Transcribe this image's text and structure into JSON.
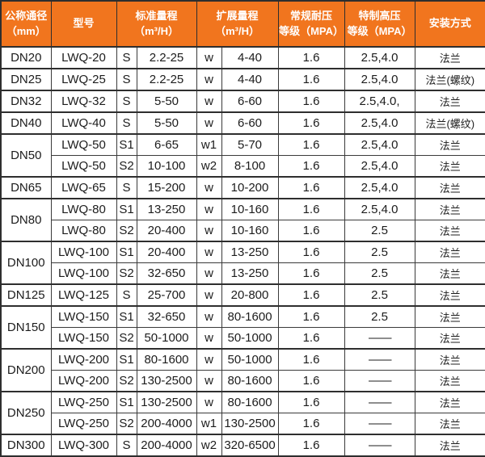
{
  "colors": {
    "header_bg": "#f1751e",
    "header_text": "#ffffff",
    "border_dark": "#2e2e2e",
    "grid": "#3a3a3a",
    "body_text": "#1c1c1c",
    "body_bg": "#ffffff"
  },
  "chart_data": {
    "type": "table",
    "headers": {
      "dn": "公称通径\n（mm）",
      "model": "型号",
      "std": "标准量程\n（m³/H）",
      "ext": "扩展量程\n（m³/H）",
      "pressure": "常规耐压\n等级（MPA）",
      "high": "特制高压\n等级（MPA）",
      "install": "安装方式"
    },
    "rows": [
      {
        "dn": "DN20",
        "dn_rowspan": 1,
        "model": "LWQ-20",
        "s": "S",
        "std": "2.2-25",
        "w": "w",
        "ext": "4-40",
        "pressure": "1.6",
        "high": "2.5,4.0",
        "install": "法兰"
      },
      {
        "dn": "DN25",
        "dn_rowspan": 1,
        "model": "LWQ-25",
        "s": "S",
        "std": "2.2-25",
        "w": "w",
        "ext": "4-40",
        "pressure": "1.6",
        "high": "2.5,4.0",
        "install": "法兰(螺纹)"
      },
      {
        "dn": "DN32",
        "dn_rowspan": 1,
        "model": "LWQ-32",
        "s": "S",
        "std": "5-50",
        "w": "w",
        "ext": "6-60",
        "pressure": "1.6",
        "high": "2.5,4.0,",
        "install": "法兰"
      },
      {
        "dn": "DN40",
        "dn_rowspan": 1,
        "model": "LWQ-40",
        "s": "S",
        "std": "5-50",
        "w": "w",
        "ext": "6-60",
        "pressure": "1.6",
        "high": "2.5,4.0",
        "install": "法兰(螺纹)"
      },
      {
        "dn": "DN50",
        "dn_rowspan": 2,
        "model": "LWQ-50",
        "s": "S1",
        "std": "6-65",
        "w": "w1",
        "ext": "5-70",
        "pressure": "1.6",
        "high": "2.5,4.0",
        "install": "法兰"
      },
      {
        "dn": null,
        "model": "LWQ-50",
        "s": "S2",
        "std": "10-100",
        "w": "w2",
        "ext": "8-100",
        "pressure": "1.6",
        "high": "2.5,4.0",
        "install": "法兰"
      },
      {
        "dn": "DN65",
        "dn_rowspan": 1,
        "model": "LWQ-65",
        "s": "S",
        "std": "15-200",
        "w": "w",
        "ext": "10-200",
        "pressure": "1.6",
        "high": "2.5,4.0",
        "install": "法兰"
      },
      {
        "dn": "DN80",
        "dn_rowspan": 2,
        "model": "LWQ-80",
        "s": "S1",
        "std": "13-250",
        "w": "w",
        "ext": "10-160",
        "pressure": "1.6",
        "high": "2.5,4.0",
        "install": "法兰"
      },
      {
        "dn": null,
        "model": "LWQ-80",
        "s": "S2",
        "std": "20-400",
        "w": "w",
        "ext": "10-160",
        "pressure": "1.6",
        "high": "2.5",
        "install": "法兰"
      },
      {
        "dn": "DN100",
        "dn_rowspan": 2,
        "model": "LWQ-100",
        "s": "S1",
        "std": "20-400",
        "w": "w",
        "ext": "13-250",
        "pressure": "1.6",
        "high": "2.5",
        "install": "法兰"
      },
      {
        "dn": null,
        "model": "LWQ-100",
        "s": "S2",
        "std": "32-650",
        "w": "w",
        "ext": "13-250",
        "pressure": "1.6",
        "high": "2.5",
        "install": "法兰"
      },
      {
        "dn": "DN125",
        "dn_rowspan": 1,
        "model": "LWQ-125",
        "s": "S",
        "std": "25-700",
        "w": "w",
        "ext": "20-800",
        "pressure": "1.6",
        "high": "2.5",
        "install": "法兰"
      },
      {
        "dn": "DN150",
        "dn_rowspan": 2,
        "model": "LWQ-150",
        "s": "S1",
        "std": "32-650",
        "w": "w",
        "ext": "80-1600",
        "pressure": "1.6",
        "high": "2.5",
        "install": "法兰"
      },
      {
        "dn": null,
        "model": "LWQ-150",
        "s": "S2",
        "std": "50-1000",
        "w": "w",
        "ext": "50-1000",
        "pressure": "1.6",
        "high": "——",
        "install": "法兰"
      },
      {
        "dn": "DN200",
        "dn_rowspan": 2,
        "model": "LWQ-200",
        "s": "S1",
        "std": "80-1600",
        "w": "w",
        "ext": "50-1000",
        "pressure": "1.6",
        "high": "——",
        "install": "法兰"
      },
      {
        "dn": null,
        "model": "LWQ-200",
        "s": "S2",
        "std": "130-2500",
        "w": "w",
        "ext": "80-1600",
        "pressure": "1.6",
        "high": "——",
        "install": "法兰"
      },
      {
        "dn": "DN250",
        "dn_rowspan": 2,
        "model": "LWQ-250",
        "s": "S1",
        "std": "130-2500",
        "w": "w",
        "ext": "80-1600",
        "pressure": "1.6",
        "high": "——",
        "install": "法兰"
      },
      {
        "dn": null,
        "model": "LWQ-250",
        "s": "S2",
        "std": "200-4000",
        "w": "w1",
        "ext": "130-2500",
        "pressure": "1.6",
        "high": "——",
        "install": "法兰"
      },
      {
        "dn": "DN300",
        "dn_rowspan": 1,
        "model": "LWQ-300",
        "s": "S",
        "std": "200-4000",
        "w": "w2",
        "ext": "320-6500",
        "pressure": "1.6",
        "high": "——",
        "install": "法兰"
      }
    ]
  }
}
